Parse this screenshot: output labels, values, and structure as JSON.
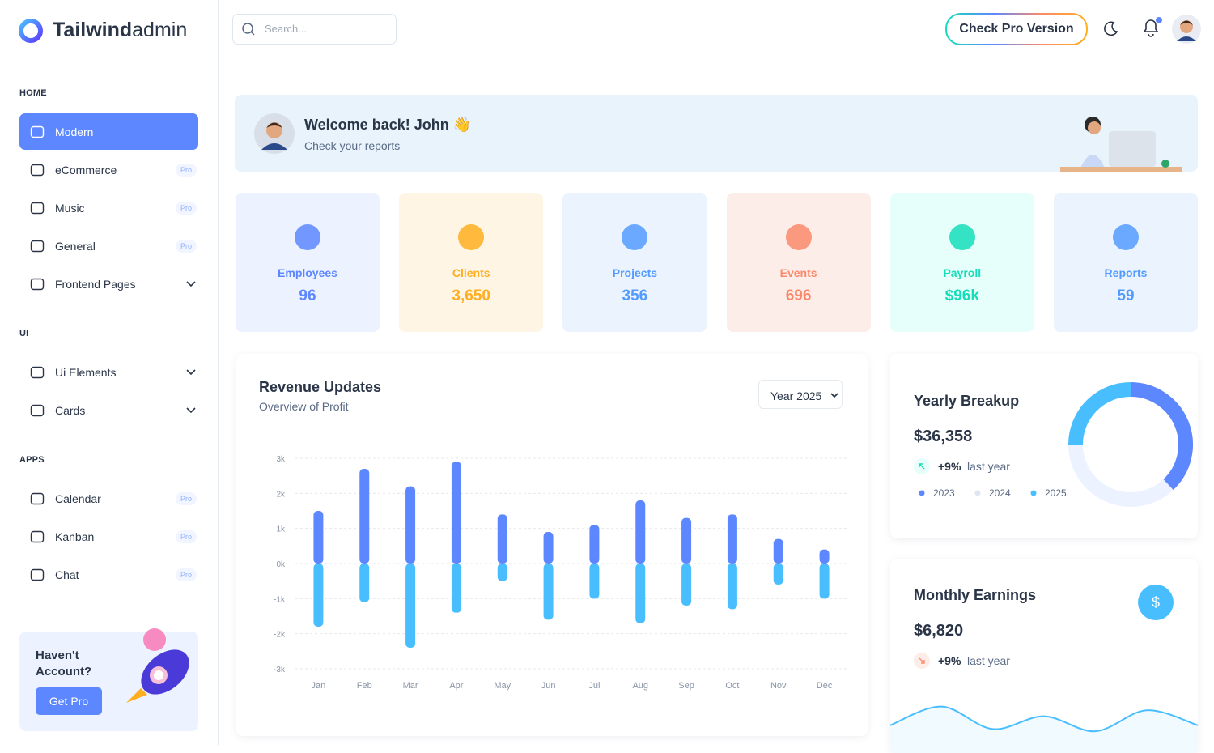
{
  "brand": {
    "name_bold": "Tailwind",
    "name_light": "admin"
  },
  "search": {
    "placeholder": "Search..."
  },
  "header": {
    "pro_button": "Check Pro Version"
  },
  "sidebar": {
    "sections": [
      {
        "title": "HOME",
        "items": [
          {
            "label": "Modern",
            "active": true
          },
          {
            "label": "eCommerce",
            "badge": "Pro"
          },
          {
            "label": "Music",
            "badge": "Pro"
          },
          {
            "label": "General",
            "badge": "Pro"
          },
          {
            "label": "Frontend Pages",
            "has_submenu": true
          }
        ]
      },
      {
        "title": "UI",
        "items": [
          {
            "label": "Ui Elements",
            "has_submenu": true
          },
          {
            "label": "Cards",
            "has_submenu": true
          }
        ]
      },
      {
        "title": "APPS",
        "items": [
          {
            "label": "Calendar",
            "badge": "Pro"
          },
          {
            "label": "Kanban",
            "badge": "Pro"
          },
          {
            "label": "Chat",
            "badge": "Pro"
          }
        ]
      }
    ],
    "promo": {
      "title": "Haven't Account?",
      "button": "Get Pro"
    }
  },
  "welcome": {
    "title": "Welcome back! John 👋",
    "subtitle": "Check your reports"
  },
  "stats": [
    {
      "label": "Employees",
      "value": "96",
      "color": "#5d87ff",
      "bg": "#ecf2ff"
    },
    {
      "label": "Clients",
      "value": "3,650",
      "color": "#ffae1f",
      "bg": "#fef5e5"
    },
    {
      "label": "Projects",
      "value": "356",
      "color": "#539bff",
      "bg": "#ebf3fe"
    },
    {
      "label": "Events",
      "value": "696",
      "color": "#fa896b",
      "bg": "#fdede8"
    },
    {
      "label": "Payroll",
      "value": "$96k",
      "color": "#13deb9",
      "bg": "#e6fffa"
    },
    {
      "label": "Reports",
      "value": "59",
      "color": "#539bff",
      "bg": "#ebf3fe"
    }
  ],
  "revenue": {
    "type": "bar",
    "title": "Revenue Updates",
    "subtitle": "Overview of Profit",
    "select": "Year 2025",
    "categories": [
      "Jan",
      "Feb",
      "Mar",
      "Apr",
      "May",
      "Jun",
      "Jul",
      "Aug",
      "Sep",
      "Oct",
      "Nov",
      "Dec"
    ],
    "series": [
      {
        "color": "#5d87ff",
        "values": [
          1.5,
          2.7,
          2.2,
          2.9,
          1.4,
          0.9,
          1.1,
          1.8,
          1.3,
          1.4,
          0.7,
          0.4
        ]
      },
      {
        "color": "#49beff",
        "values": [
          -1.8,
          -1.1,
          -2.4,
          -1.4,
          -0.5,
          -1.6,
          -1.0,
          -1.7,
          -1.2,
          -1.3,
          -0.6,
          -1.0
        ]
      }
    ],
    "ylim": [
      -3,
      3
    ],
    "yticks": [
      {
        "value": 3,
        "label": "3k"
      },
      {
        "value": 2,
        "label": "2k"
      },
      {
        "value": 1,
        "label": "1k"
      },
      {
        "value": 0,
        "label": "0k"
      },
      {
        "value": -1,
        "label": "-1k"
      },
      {
        "value": -2,
        "label": "-2k"
      },
      {
        "value": -3,
        "label": "-3k"
      }
    ],
    "grid": true
  },
  "yearly": {
    "type": "pie",
    "title": "Yearly Breakup",
    "amount": "$36,358",
    "change": "+9%",
    "change_note": "last year",
    "categories": [
      "2023",
      "2024",
      "2025"
    ],
    "values": [
      38,
      37,
      25
    ],
    "colors": [
      "#5d87ff",
      "#ecf2ff",
      "#49beff"
    ]
  },
  "monthly": {
    "type": "line",
    "title": "Monthly Earnings",
    "icon": "$",
    "amount": "$6,820",
    "change": "+9%",
    "change_note": "last year",
    "values": [
      10,
      35,
      5,
      22,
      2,
      30,
      10
    ],
    "ylim": [
      0,
      40
    ],
    "color": "#49beff"
  }
}
